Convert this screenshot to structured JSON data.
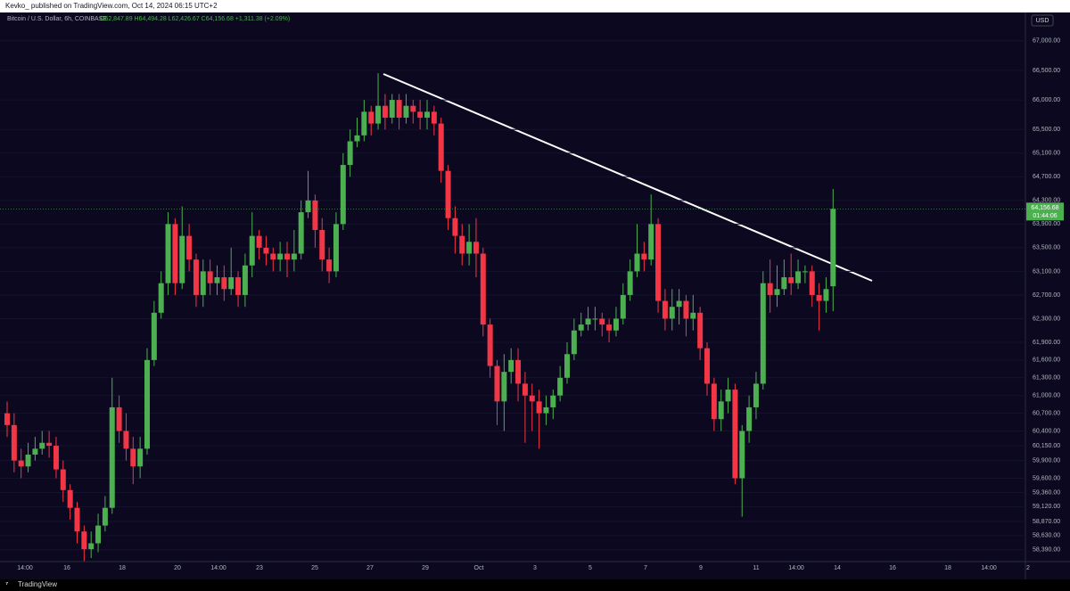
{
  "header": "Kevko_ published on TradingView.com, Oct 14, 2024 06:15 UTC+2",
  "footer": "TradingView",
  "chart_data": {
    "type": "candlestick",
    "symbol": "Bitcoin / U.S. Dollar, 6h, COINBASE",
    "ohlc_label": "O62,847.89 H64,494.28 L62,426.67 C64,156.68 +1,311.38 (+2.09%)",
    "currency": "USD",
    "last_price": 64156.68,
    "last_price_label": "64,156.68",
    "countdown": "01:44:06",
    "up_color": "#4caf50",
    "down_color": "#f23645",
    "xlabels": [
      "14:00",
      "16",
      "18",
      "20",
      "14:00",
      "23",
      "25",
      "27",
      "29",
      "Oct",
      "3",
      "5",
      "7",
      "9",
      "11",
      "14:00",
      "14",
      "16",
      "18",
      "14:00",
      "2"
    ],
    "open": [
      60700,
      60500,
      59900,
      59800,
      60000,
      60100,
      60200,
      60150,
      59750,
      59400,
      59100,
      58700,
      58400,
      58500,
      58800,
      59100,
      60800,
      60400,
      60100,
      59800,
      60100,
      61600,
      62400,
      62900,
      63900,
      62900,
      63700,
      63300,
      62700,
      63100,
      62900,
      63000,
      62800,
      63000,
      62700,
      63200,
      63700,
      63500,
      63400,
      63300,
      63400,
      63300,
      63400,
      64100,
      64300,
      63800,
      63300,
      63100,
      63900,
      64900,
      65300,
      65400,
      65800,
      65600,
      65900,
      65700,
      66000,
      65700,
      65900,
      65800,
      65700,
      65800,
      65600,
      64800,
      64000,
      63700,
      63400,
      63600,
      63400,
      62200,
      61500,
      60900,
      61400,
      61600,
      61200,
      61000,
      60900,
      60700,
      60800,
      61000,
      61300,
      61700,
      62100,
      62200,
      62300,
      62300,
      62200,
      62100,
      62300,
      62700,
      63100,
      63400,
      63300,
      63900,
      62600,
      62300,
      62500,
      62600,
      62300,
      62400,
      61800,
      61200,
      60600,
      60900,
      61100,
      59600,
      60400,
      60800,
      61200,
      62900,
      62700,
      62800,
      63000,
      62900,
      63100,
      63100,
      62700,
      62600,
      62847.89
    ],
    "high": [
      60900,
      60700,
      60100,
      60200,
      60300,
      60400,
      60400,
      60300,
      59900,
      59500,
      59200,
      58800,
      58700,
      59000,
      59300,
      61300,
      61000,
      60700,
      60300,
      60300,
      61800,
      62600,
      63100,
      64100,
      64000,
      64200,
      63900,
      63400,
      63300,
      63300,
      63200,
      63200,
      63500,
      63100,
      63400,
      64100,
      63800,
      63700,
      63500,
      63600,
      63600,
      63800,
      64300,
      64800,
      64400,
      64000,
      63500,
      64100,
      65100,
      65500,
      65700,
      66000,
      65900,
      66450,
      66100,
      66100,
      66100,
      66100,
      66000,
      66000,
      66000,
      65900,
      65700,
      64900,
      64200,
      63900,
      63900,
      64000,
      63500,
      62300,
      61600,
      61700,
      61800,
      61800,
      61400,
      61200,
      61100,
      61000,
      61100,
      61500,
      61900,
      62300,
      62400,
      62500,
      62500,
      62400,
      62300,
      62500,
      62900,
      63300,
      63900,
      63600,
      64400,
      64000,
      62800,
      62800,
      62800,
      62700,
      62700,
      62500,
      61900,
      61300,
      61100,
      61300,
      61200,
      60500,
      61000,
      61400,
      63100,
      63300,
      63200,
      63300,
      63400,
      63300,
      63200,
      63200,
      62900,
      63000,
      64494.28
    ],
    "low": [
      60300,
      59700,
      59600,
      59700,
      59900,
      60000,
      59950,
      59600,
      59200,
      58900,
      58500,
      58200,
      58250,
      58350,
      58700,
      59000,
      60200,
      59900,
      59500,
      59600,
      60000,
      61500,
      62300,
      62700,
      62700,
      62800,
      63100,
      62500,
      62500,
      62700,
      62700,
      62600,
      62700,
      62500,
      62500,
      63000,
      63300,
      63200,
      63100,
      63100,
      63000,
      63100,
      63300,
      64000,
      63500,
      63100,
      62900,
      63000,
      63800,
      64700,
      65200,
      65300,
      65400,
      65500,
      65500,
      65600,
      65500,
      65600,
      65600,
      65500,
      65500,
      65400,
      64600,
      63800,
      63400,
      63200,
      63200,
      63000,
      62000,
      61300,
      60500,
      60400,
      61200,
      60900,
      60200,
      60400,
      60100,
      60500,
      60600,
      60900,
      61200,
      61600,
      62000,
      62100,
      62100,
      62000,
      61900,
      62000,
      62200,
      62600,
      63000,
      63100,
      63200,
      62400,
      62100,
      62100,
      62200,
      62000,
      62100,
      61600,
      61000,
      60400,
      60400,
      60700,
      59500,
      58950,
      60200,
      60600,
      61100,
      62400,
      62500,
      62700,
      62700,
      62800,
      62900,
      62500,
      62100,
      62400,
      62426.67
    ],
    "close": [
      60500,
      59900,
      59800,
      60000,
      60100,
      60200,
      60150,
      59750,
      59400,
      59100,
      58700,
      58400,
      58500,
      58800,
      59100,
      60800,
      60400,
      60100,
      59800,
      60100,
      61600,
      62400,
      62900,
      63900,
      62900,
      63700,
      63300,
      62700,
      63100,
      62900,
      63000,
      62800,
      63000,
      62700,
      63200,
      63700,
      63500,
      63400,
      63300,
      63400,
      63300,
      63400,
      64100,
      64300,
      63800,
      63300,
      63100,
      63900,
      64900,
      65300,
      65400,
      65800,
      65600,
      65900,
      65700,
      66000,
      65700,
      65900,
      65800,
      65700,
      65800,
      65600,
      64800,
      64000,
      63700,
      63400,
      63600,
      63400,
      62200,
      61500,
      60900,
      61400,
      61600,
      61200,
      61000,
      60900,
      60700,
      60800,
      61000,
      61300,
      61700,
      62100,
      62200,
      62300,
      62300,
      62200,
      62100,
      62300,
      62700,
      63100,
      63400,
      63300,
      63900,
      62600,
      62300,
      62500,
      62600,
      62300,
      62400,
      61800,
      61200,
      60600,
      60900,
      61100,
      59600,
      60400,
      60800,
      61200,
      62900,
      62700,
      62800,
      63000,
      62900,
      63100,
      63100,
      62700,
      62600,
      62800,
      64156.68
    ],
    "ylim": [
      58040,
      67690
    ],
    "yticks": [
      {
        "value": 67000,
        "label": "67,000.00"
      },
      {
        "value": 66500,
        "label": "66,500.00"
      },
      {
        "value": 66000,
        "label": "66,000.00"
      },
      {
        "value": 65500,
        "label": "65,500.00"
      },
      {
        "value": 65100,
        "label": "65,100.00"
      },
      {
        "value": 64700,
        "label": "64,700.00"
      },
      {
        "value": 64300,
        "label": "64,300.00"
      },
      {
        "value": 63900,
        "label": "63,900.00"
      },
      {
        "value": 63500,
        "label": "63,500.00"
      },
      {
        "value": 63100,
        "label": "63,100.00"
      },
      {
        "value": 62700,
        "label": "62,700.00"
      },
      {
        "value": 62300,
        "label": "62,300.00"
      },
      {
        "value": 61900,
        "label": "61,900.00"
      },
      {
        "value": 61600,
        "label": "61,600.00"
      },
      {
        "value": 61300,
        "label": "61,300.00"
      },
      {
        "value": 61000,
        "label": "61,000.00"
      },
      {
        "value": 60700,
        "label": "60,700.00"
      },
      {
        "value": 60400,
        "label": "60,400.00"
      },
      {
        "value": 60150,
        "label": "60,150.00"
      },
      {
        "value": 59900,
        "label": "59,900.00"
      },
      {
        "value": 59600,
        "label": "59,600.00"
      },
      {
        "value": 59360,
        "label": "59,360.00"
      },
      {
        "value": 59120,
        "label": "59,120.00"
      },
      {
        "value": 58870,
        "label": "58,870.00"
      },
      {
        "value": 58630,
        "label": "58,630.00"
      },
      {
        "value": 58390,
        "label": "58,390.00"
      }
    ]
  }
}
